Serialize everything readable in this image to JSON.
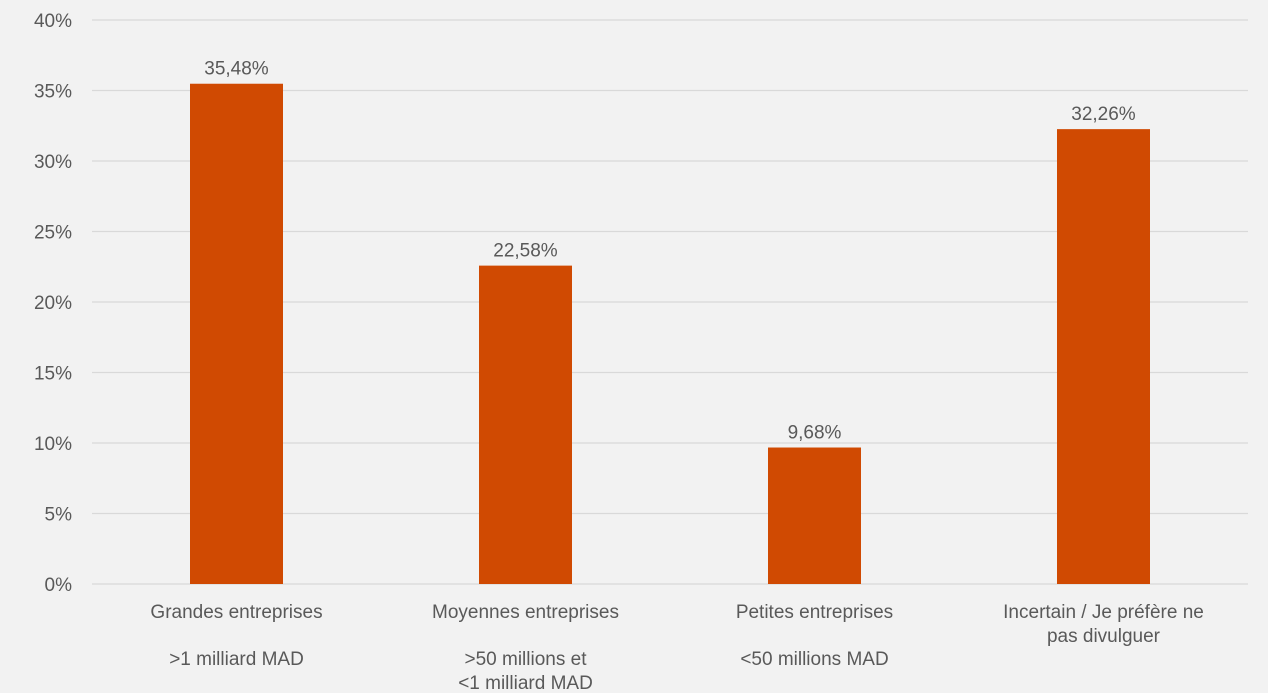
{
  "chart_data": {
    "type": "bar",
    "title": "",
    "xlabel": "",
    "ylabel": "",
    "ylim": [
      0,
      40
    ],
    "ytick_step": 5,
    "tick_suffix": "%",
    "grid": true,
    "legend": "none",
    "colors": {
      "bar": "#d04a02",
      "grid": "#d9d9d9",
      "text": "#595959",
      "background": "#f2f2f2"
    },
    "categories": [
      {
        "name": "Grandes entreprises",
        "sub": [
          ">1 milliard MAD"
        ]
      },
      {
        "name": "Moyennes entreprises",
        "sub": [
          ">50 millions et",
          "<1 milliard MAD"
        ]
      },
      {
        "name": "Petites entreprises",
        "sub": [
          "<50 millions MAD"
        ]
      },
      {
        "name": "Incertain / Je préfère ne pas divulguer",
        "name_lines": [
          "Incertain / Je préfère ne",
          "pas divulguer"
        ],
        "sub": []
      }
    ],
    "values": [
      35.48,
      22.58,
      9.68,
      32.26
    ],
    "value_labels": [
      "35,48%",
      "22,58%",
      "9,68%",
      "32,26%"
    ],
    "ytick_labels": [
      "0%",
      "5%",
      "10%",
      "15%",
      "20%",
      "25%",
      "30%",
      "35%",
      "40%"
    ]
  }
}
